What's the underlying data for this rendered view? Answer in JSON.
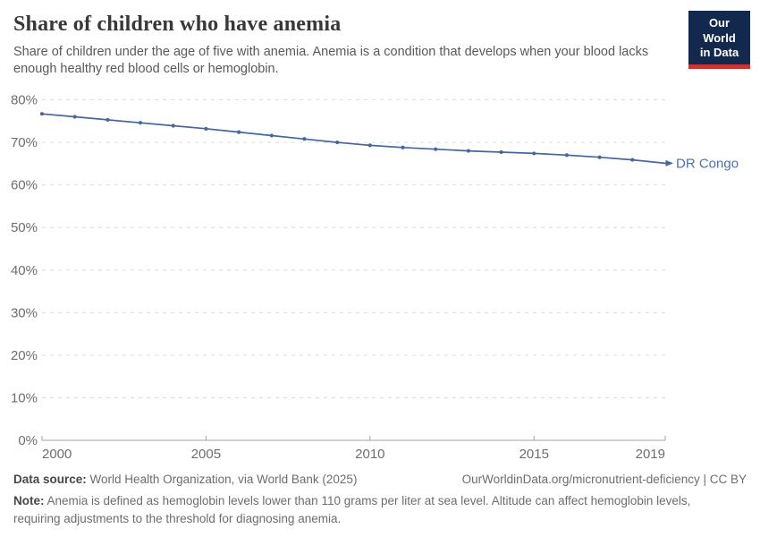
{
  "header": {
    "title": "Share of children who have anemia",
    "subtitle": "Share of children under the age of five with anemia. Anemia is a condition that develops when your blood lacks enough healthy red blood cells or hemoglobin.",
    "logo": {
      "line1": "Our World",
      "line2": "in Data"
    }
  },
  "chart_data": {
    "type": "line",
    "title": "Share of children who have anemia",
    "xlabel": "",
    "ylabel": "",
    "xlim": [
      2000,
      2019
    ],
    "ylim": [
      0,
      80
    ],
    "grid": "horizontal-dashed",
    "legend_position": "end-of-line-label",
    "x": [
      2000,
      2001,
      2002,
      2003,
      2004,
      2005,
      2006,
      2007,
      2008,
      2009,
      2010,
      2011,
      2012,
      2013,
      2014,
      2015,
      2016,
      2017,
      2018,
      2019
    ],
    "series": [
      {
        "name": "DR Congo",
        "color": "#45669e",
        "values": [
          76.7,
          76.0,
          75.3,
          74.6,
          73.9,
          73.2,
          72.4,
          71.6,
          70.8,
          70.0,
          69.3,
          68.8,
          68.4,
          68.0,
          67.7,
          67.4,
          67.0,
          66.5,
          65.9,
          65.1
        ]
      }
    ],
    "yticks": [
      0,
      10,
      20,
      30,
      40,
      50,
      60,
      70,
      80
    ],
    "ytick_labels": [
      "0%",
      "10%",
      "20%",
      "30%",
      "40%",
      "50%",
      "60%",
      "70%",
      "80%"
    ],
    "xticks": [
      2000,
      2005,
      2010,
      2015,
      2019
    ],
    "xtick_labels": [
      "2000",
      "2005",
      "2010",
      "2015",
      "2019"
    ]
  },
  "footer": {
    "datasource_label": "Data source:",
    "datasource": "World Health Organization, via World Bank (2025)",
    "link": "OurWorldinData.org/micronutrient-deficiency | CC BY",
    "note_label": "Note:",
    "note": "Anemia is defined as hemoglobin levels lower than 110 grams per liter at sea level. Altitude can affect hemoglobin levels, requiring adjustments to the threshold for diagnosing anemia."
  },
  "colors": {
    "series_line": "#45669e",
    "entity_label": "#4d72ac",
    "gridline": "#dcdcdc",
    "axis": "#a3a3a3",
    "tick_label": "#6e6e6e",
    "title": "#383838",
    "subtitle": "#595959",
    "logo_bg": "#12294d",
    "logo_stripe": "#cb3430"
  }
}
